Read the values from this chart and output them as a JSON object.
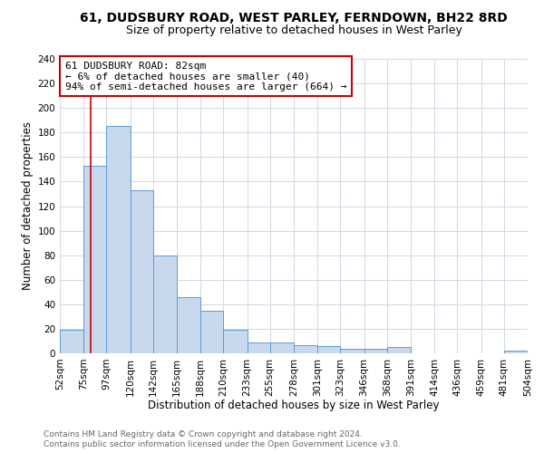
{
  "title": "61, DUDSBURY ROAD, WEST PARLEY, FERNDOWN, BH22 8RD",
  "subtitle": "Size of property relative to detached houses in West Parley",
  "xlabel": "Distribution of detached houses by size in West Parley",
  "ylabel": "Number of detached properties",
  "footer1": "Contains HM Land Registry data © Crown copyright and database right 2024.",
  "footer2": "Contains public sector information licensed under the Open Government Licence v3.0.",
  "bin_edges": [
    52,
    75,
    97,
    120,
    142,
    165,
    188,
    210,
    233,
    255,
    278,
    301,
    323,
    346,
    368,
    391,
    414,
    436,
    459,
    481,
    504
  ],
  "bin_labels": [
    "52sqm",
    "75sqm",
    "97sqm",
    "120sqm",
    "142sqm",
    "165sqm",
    "188sqm",
    "210sqm",
    "233sqm",
    "255sqm",
    "278sqm",
    "301sqm",
    "323sqm",
    "346sqm",
    "368sqm",
    "391sqm",
    "414sqm",
    "436sqm",
    "459sqm",
    "481sqm",
    "504sqm"
  ],
  "counts": [
    19,
    153,
    185,
    133,
    80,
    46,
    35,
    19,
    9,
    9,
    7,
    6,
    4,
    4,
    5,
    0,
    0,
    0,
    0,
    2
  ],
  "bar_facecolor": "#c9d9ed",
  "bar_edgecolor": "#5b9bd5",
  "grid_color": "#d0d8e4",
  "vline_x": 82,
  "vline_color": "#cc0000",
  "annotation_text": "61 DUDSBURY ROAD: 82sqm\n← 6% of detached houses are smaller (40)\n94% of semi-detached houses are larger (664) →",
  "annotation_box_edgecolor": "#cc0000",
  "ylim": [
    0,
    240
  ],
  "yticks": [
    0,
    20,
    40,
    60,
    80,
    100,
    120,
    140,
    160,
    180,
    200,
    220,
    240
  ],
  "background_color": "#ffffff",
  "title_fontsize": 10,
  "subtitle_fontsize": 9,
  "axis_label_fontsize": 8.5,
  "tick_fontsize": 7.5,
  "annotation_fontsize": 8,
  "footer_fontsize": 6.5
}
